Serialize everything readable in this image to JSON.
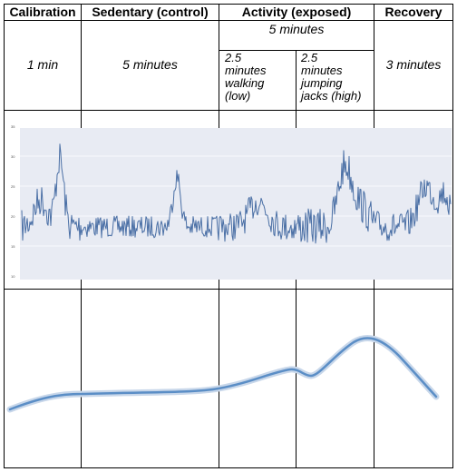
{
  "columns": {
    "calibration": {
      "label": "Calibration",
      "duration": "1 min"
    },
    "sedentary": {
      "label": "Sedentary (control)",
      "duration": "5 minutes"
    },
    "activity": {
      "label": "Activity (exposed)",
      "duration": "5 minutes",
      "sub": {
        "walking": {
          "lines": [
            "2.5",
            "minutes",
            "walking",
            "(low)"
          ]
        },
        "jumping": {
          "lines": [
            "2.5",
            "minutes",
            "jumping",
            "jacks (high)"
          ]
        }
      }
    },
    "recovery": {
      "label": "Recovery",
      "duration": "3 minutes"
    }
  },
  "colors": {
    "signal_line": "#4a6fa5",
    "signal_bg": "#e8ebf3",
    "trend_line": "#5b8ec6",
    "trend_glow": "#c8d7ea",
    "grid": "#000000"
  }
}
